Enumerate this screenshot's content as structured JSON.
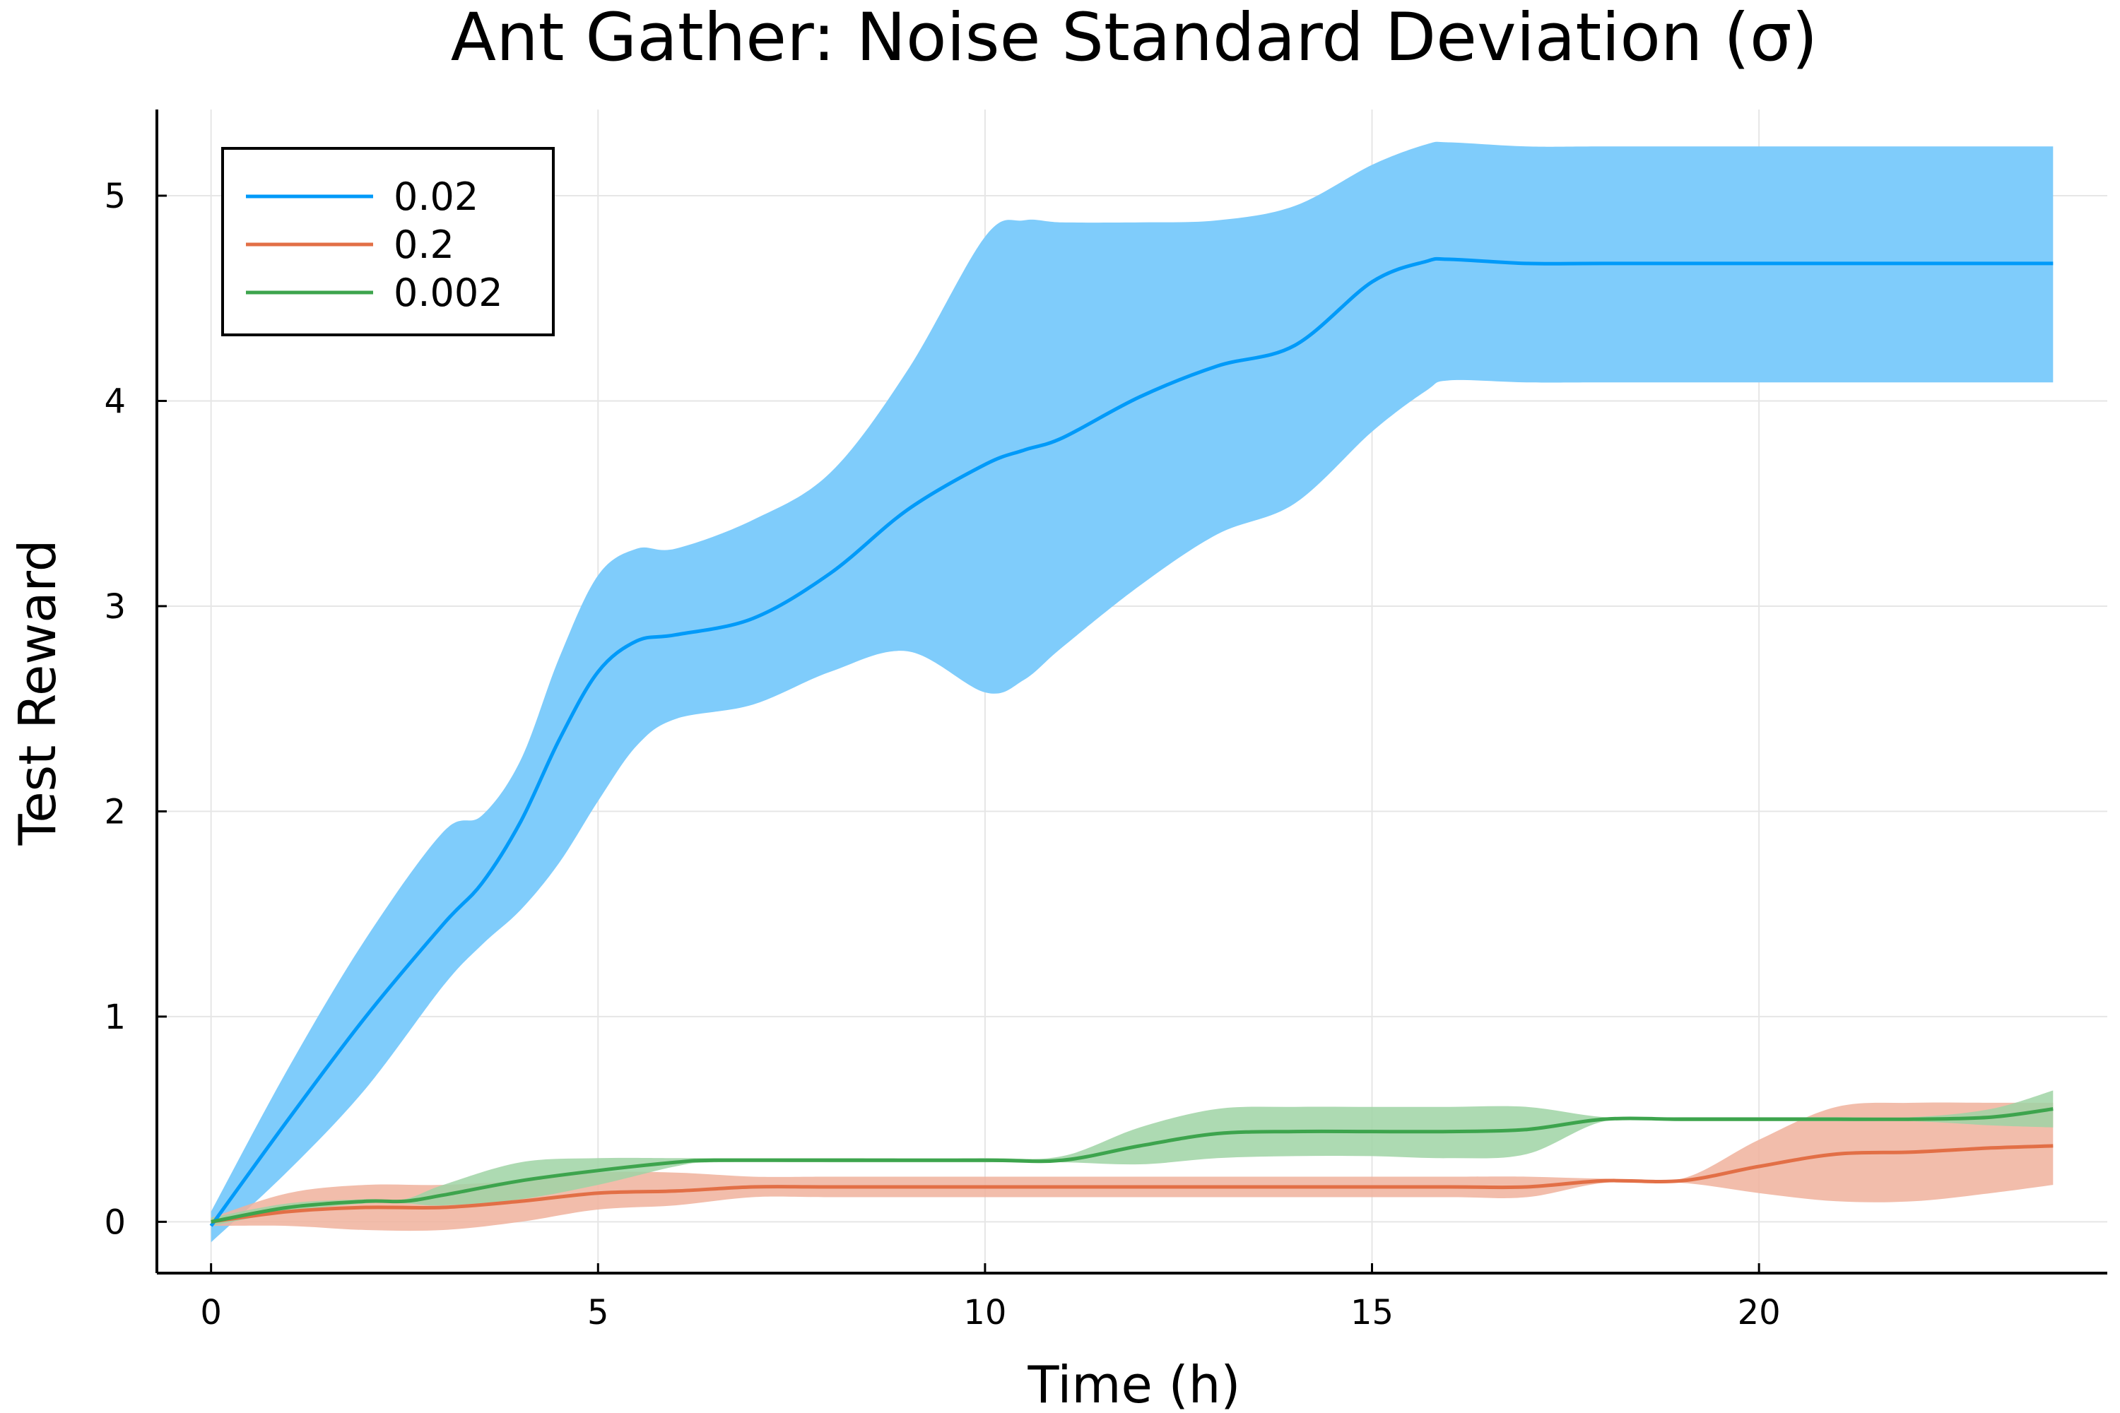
{
  "chart_data": {
    "type": "line",
    "title": "Ant Gather: Noise Standard Deviation (σ)",
    "xlabel": "Time (h)",
    "ylabel": "Test Reward",
    "xlim": [
      -0.7,
      24.5
    ],
    "ylim": [
      -0.25,
      5.42
    ],
    "xticks": [
      0,
      5,
      10,
      15,
      20
    ],
    "yticks": [
      0,
      1,
      2,
      3,
      4,
      5
    ],
    "grid": true,
    "legend_position": "top-left",
    "series": [
      {
        "name": "0.02",
        "color": "#009af9",
        "band_color": "#7fccfb",
        "x": [
          0,
          1,
          2,
          3,
          3.5,
          4,
          4.5,
          5,
          5.5,
          6,
          7,
          8,
          9,
          10,
          10.5,
          11,
          12,
          13,
          14,
          15,
          15.7,
          16,
          17,
          18,
          20,
          22,
          23.8
        ],
        "mean": [
          -0.02,
          0.5,
          1.0,
          1.45,
          1.65,
          1.95,
          2.35,
          2.68,
          2.83,
          2.86,
          2.94,
          3.16,
          3.47,
          3.69,
          3.76,
          3.82,
          4.02,
          4.17,
          4.27,
          4.58,
          4.68,
          4.69,
          4.67,
          4.67,
          4.67,
          4.67,
          4.67
        ],
        "upper": [
          0.05,
          0.75,
          1.38,
          1.9,
          1.98,
          2.25,
          2.75,
          3.15,
          3.28,
          3.28,
          3.42,
          3.65,
          4.15,
          4.8,
          4.88,
          4.87,
          4.87,
          4.88,
          4.95,
          5.15,
          5.25,
          5.26,
          5.24,
          5.24,
          5.24,
          5.24,
          5.24
        ],
        "lower": [
          -0.1,
          0.25,
          0.65,
          1.15,
          1.35,
          1.52,
          1.75,
          2.05,
          2.32,
          2.45,
          2.52,
          2.68,
          2.78,
          2.58,
          2.64,
          2.8,
          3.1,
          3.35,
          3.5,
          3.85,
          4.05,
          4.1,
          4.09,
          4.09,
          4.09,
          4.09,
          4.09
        ]
      },
      {
        "name": "0.2",
        "color": "#e26f46",
        "band_color": "#f0b19c",
        "x": [
          0,
          1,
          2,
          3,
          4,
          5,
          6,
          7,
          8,
          10,
          12,
          14,
          16,
          17,
          18,
          19,
          20,
          21,
          22,
          23,
          23.8
        ],
        "mean": [
          0.0,
          0.05,
          0.07,
          0.07,
          0.1,
          0.14,
          0.15,
          0.17,
          0.17,
          0.17,
          0.17,
          0.17,
          0.17,
          0.17,
          0.2,
          0.2,
          0.27,
          0.33,
          0.34,
          0.36,
          0.37
        ],
        "upper": [
          0.02,
          0.14,
          0.18,
          0.18,
          0.2,
          0.24,
          0.24,
          0.22,
          0.22,
          0.22,
          0.22,
          0.22,
          0.22,
          0.22,
          0.21,
          0.21,
          0.4,
          0.56,
          0.58,
          0.58,
          0.58
        ],
        "lower": [
          -0.02,
          -0.02,
          -0.04,
          -0.04,
          0.0,
          0.06,
          0.08,
          0.12,
          0.12,
          0.12,
          0.12,
          0.12,
          0.12,
          0.12,
          0.19,
          0.19,
          0.14,
          0.1,
          0.1,
          0.14,
          0.18
        ]
      },
      {
        "name": "0.002",
        "color": "#3da44d",
        "band_color": "#9fd3a5",
        "x": [
          0,
          1,
          2,
          2.5,
          3,
          4,
          5,
          6,
          6.5,
          8,
          10,
          11,
          12,
          13,
          14,
          15,
          16,
          17,
          18,
          19,
          20,
          21,
          22,
          23,
          23.8
        ],
        "mean": [
          0.0,
          0.07,
          0.1,
          0.1,
          0.13,
          0.2,
          0.25,
          0.29,
          0.3,
          0.3,
          0.3,
          0.3,
          0.37,
          0.43,
          0.44,
          0.44,
          0.44,
          0.45,
          0.5,
          0.5,
          0.5,
          0.5,
          0.5,
          0.51,
          0.55
        ],
        "upper": [
          0.02,
          0.09,
          0.11,
          0.11,
          0.18,
          0.29,
          0.31,
          0.31,
          0.31,
          0.31,
          0.31,
          0.32,
          0.46,
          0.55,
          0.56,
          0.56,
          0.56,
          0.56,
          0.51,
          0.51,
          0.51,
          0.51,
          0.51,
          0.55,
          0.64
        ],
        "lower": [
          -0.02,
          0.05,
          0.09,
          0.09,
          0.08,
          0.11,
          0.18,
          0.27,
          0.29,
          0.29,
          0.29,
          0.29,
          0.28,
          0.31,
          0.32,
          0.32,
          0.31,
          0.33,
          0.49,
          0.49,
          0.49,
          0.49,
          0.49,
          0.47,
          0.46
        ]
      }
    ]
  }
}
